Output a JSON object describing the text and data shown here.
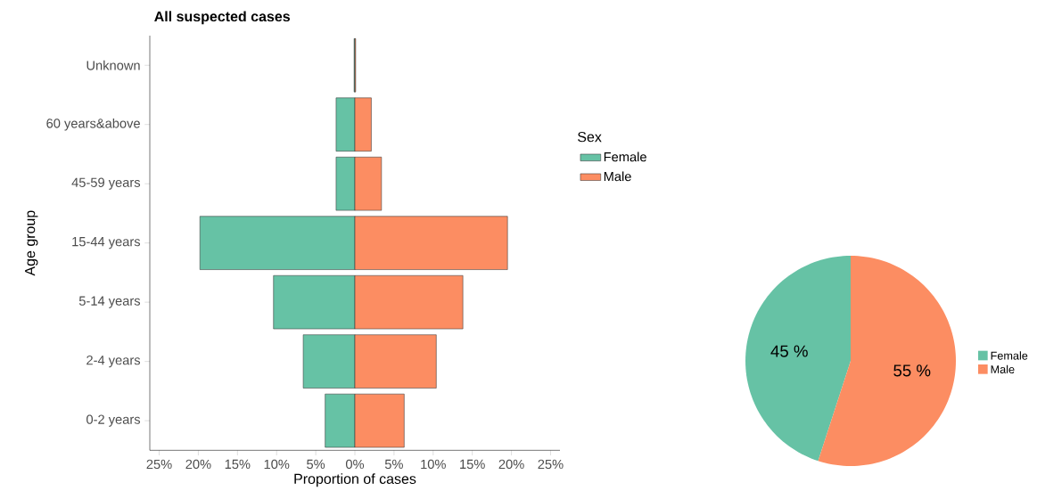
{
  "chart_data": [
    {
      "type": "bar",
      "title": "All suspected cases",
      "orientation": "horizontal",
      "stacked": true,
      "xlabel": "Proportion of cases",
      "ylabel": "Age group",
      "legend_title": "Sex",
      "legend": "right",
      "categories": [
        "Unknown",
        "60 years&above",
        "45-59 years",
        "15-44 years",
        "5-14 years",
        "2-4 years",
        "0-2 years"
      ],
      "series": [
        {
          "name": "Female",
          "color": "#66c2a5",
          "values": [
            -0.1,
            -2.4,
            -2.4,
            -19.8,
            -10.4,
            -6.6,
            -3.8
          ]
        },
        {
          "name": "Male",
          "color": "#fc8d62",
          "values": [
            0.1,
            2.1,
            3.4,
            19.5,
            13.8,
            10.4,
            6.3
          ]
        }
      ],
      "xlim": [
        -26.2,
        26.2
      ],
      "xticks": [
        {
          "value": -25,
          "label": "25%"
        },
        {
          "value": -20,
          "label": "20%"
        },
        {
          "value": -15,
          "label": "15%"
        },
        {
          "value": -10,
          "label": "10%"
        },
        {
          "value": -5,
          "label": "5%"
        },
        {
          "value": 0,
          "label": "0%"
        },
        {
          "value": 5,
          "label": "5%"
        },
        {
          "value": 10,
          "label": "10%"
        },
        {
          "value": 15,
          "label": "15%"
        },
        {
          "value": 20,
          "label": "20%"
        },
        {
          "value": 25,
          "label": "25%"
        }
      ]
    },
    {
      "type": "pie",
      "legend": "right",
      "categories": [
        "Female",
        "Male"
      ],
      "values": [
        45,
        55
      ],
      "colors": [
        "#66c2a5",
        "#fc8d62"
      ],
      "value_labels": [
        "45 %",
        "55 %"
      ]
    }
  ]
}
